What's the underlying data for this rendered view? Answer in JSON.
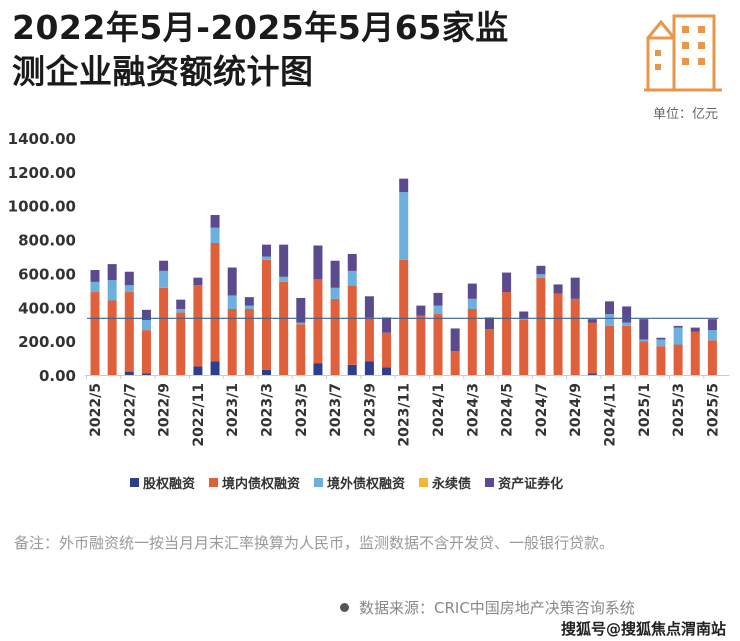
{
  "header": {
    "title_line1": "2022年5月-2025年5月65家监",
    "title_line2": "测企业融资额统计图",
    "unit": "单位：亿元"
  },
  "colors": {
    "equity": "#2b3f8c",
    "domestic_debt": "#e0603c",
    "overseas_debt": "#6cb0dd",
    "perpetual": "#f2b833",
    "abs": "#5b4a8e",
    "average_line": "#3b5f8f",
    "logo": "#e8964a"
  },
  "chart_data": {
    "type": "bar",
    "stacked": true,
    "title": "2022年5月-2025年5月65家监测企业融资额统计图",
    "ylabel": "亿元",
    "ylim": [
      0,
      1400
    ],
    "yticks": [
      "0.00",
      "200.00",
      "400.00",
      "600.00",
      "800.00",
      "1000.00",
      "1200.00",
      "1400.00"
    ],
    "categories": [
      "2022/5",
      "2022/6",
      "2022/7",
      "2022/8",
      "2022/9",
      "2022/10",
      "2022/11",
      "2022/12",
      "2023/1",
      "2023/2",
      "2023/3",
      "2023/4",
      "2023/5",
      "2023/6",
      "2023/7",
      "2023/8",
      "2023/9",
      "2023/10",
      "2023/11",
      "2023/12",
      "2024/1",
      "2024/2",
      "2024/3",
      "2024/4",
      "2024/5",
      "2024/6",
      "2024/7",
      "2024/8",
      "2024/9",
      "2024/10",
      "2024/11",
      "2024/12",
      "2025/1",
      "2025/2",
      "2025/3",
      "2025/4",
      "2025/5"
    ],
    "xtick_labels": [
      "2022/5",
      "2022/7",
      "2022/9",
      "2022/11",
      "2023/1",
      "2023/3",
      "2023/5",
      "2023/7",
      "2023/9",
      "2023/11",
      "2024/1",
      "2024/3",
      "2024/5",
      "2024/7",
      "2024/9",
      "2024/11",
      "2025/1",
      "2025/3",
      "2025/5"
    ],
    "series": [
      {
        "name": "股权融资",
        "key": "equity",
        "values": [
          0,
          0,
          20,
          10,
          0,
          0,
          50,
          80,
          0,
          0,
          30,
          0,
          0,
          70,
          0,
          60,
          80,
          45,
          0,
          0,
          0,
          0,
          0,
          0,
          0,
          0,
          0,
          0,
          0,
          10,
          0,
          0,
          0,
          0,
          0,
          0,
          0
        ]
      },
      {
        "name": "境内债权融资",
        "key": "domestic_debt",
        "values": [
          490,
          440,
          470,
          255,
          515,
          370,
          480,
          700,
          390,
          390,
          650,
          550,
          300,
          495,
          450,
          470,
          260,
          205,
          680,
          350,
          360,
          140,
          390,
          270,
          490,
          325,
          575,
          480,
          450,
          300,
          290,
          290,
          200,
          170,
          180,
          255,
          205
        ]
      },
      {
        "name": "境外债权融资",
        "key": "overseas_debt",
        "values": [
          60,
          120,
          40,
          60,
          100,
          20,
          0,
          90,
          80,
          20,
          20,
          30,
          10,
          0,
          65,
          85,
          0,
          0,
          400,
          0,
          50,
          0,
          60,
          0,
          0,
          10,
          20,
          0,
          0,
          0,
          70,
          20,
          10,
          40,
          100,
          0,
          60
        ]
      },
      {
        "name": "永续债",
        "key": "perpetual",
        "values": [
          0,
          0,
          0,
          0,
          0,
          0,
          0,
          0,
          0,
          0,
          0,
          0,
          0,
          0,
          0,
          0,
          0,
          0,
          0,
          0,
          0,
          0,
          0,
          0,
          0,
          0,
          0,
          0,
          0,
          0,
          0,
          0,
          0,
          0,
          0,
          0,
          0
        ]
      },
      {
        "name": "资产证券化",
        "key": "abs",
        "values": [
          70,
          95,
          80,
          60,
          60,
          55,
          45,
          75,
          165,
          50,
          70,
          190,
          145,
          200,
          160,
          100,
          125,
          90,
          80,
          60,
          75,
          135,
          90,
          70,
          115,
          40,
          50,
          55,
          125,
          20,
          75,
          95,
          120,
          10,
          10,
          25,
          65
        ]
      }
    ],
    "average_line": 335,
    "legend_position": "bottom",
    "grid": false
  },
  "footer": {
    "note": "备注：外币融资统一按当月月末汇率换算为人民币，监测数据不含开发贷、一般银行贷款。",
    "source": "数据来源：CRIC中国房地产决策咨询系统",
    "watermark": "搜狐号@搜狐焦点渭南站"
  }
}
